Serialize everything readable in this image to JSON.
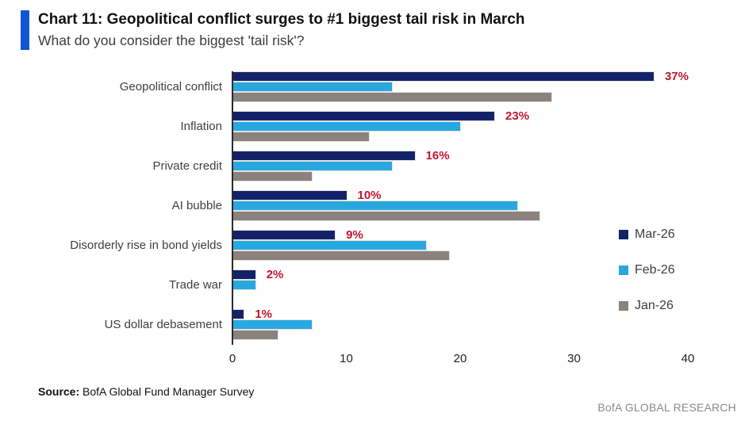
{
  "header": {
    "title": "Chart 11: Geopolitical conflict surges to #1 biggest tail risk in March",
    "subtitle": "What do you consider the biggest 'tail risk'?"
  },
  "colors": {
    "accent_bar": "#1155d4",
    "mar_navy": "#132268",
    "feb_blue": "#29a8e0",
    "jan_gray": "#8b817d",
    "value_label_red": "#c21431",
    "axis_line": "#2b2b2b"
  },
  "chart_data": {
    "type": "bar",
    "orientation": "horizontal",
    "title": "Chart 11: Geopolitical conflict surges to #1 biggest tail risk in March",
    "subtitle": "What do you consider the biggest 'tail risk'?",
    "categories": [
      "Geopolitical conflict",
      "Inflation",
      "Private credit",
      "AI bubble",
      "Disorderly rise in bond yields",
      "Trade war",
      "US dollar debasement"
    ],
    "series": [
      {
        "name": "Mar-26",
        "color": "#132268",
        "values": [
          37,
          23,
          16,
          10,
          9,
          2,
          1
        ],
        "value_labels": [
          "37%",
          "23%",
          "16%",
          "10%",
          "9%",
          "2%",
          "1%"
        ]
      },
      {
        "name": "Feb-26",
        "color": "#29a8e0",
        "values": [
          14,
          20,
          14,
          25,
          17,
          2,
          7
        ]
      },
      {
        "name": "Jan-26",
        "color": "#8b817d",
        "values": [
          28,
          12,
          7,
          27,
          19,
          0,
          4
        ]
      }
    ],
    "xlim": [
      0,
      40
    ],
    "xticks": [
      0,
      10,
      20,
      30,
      40
    ],
    "grid": false,
    "legend_position": "right",
    "value_labels_series": "Mar-26"
  },
  "footer": {
    "source_label": "Source:",
    "source_text": "BofA Global Fund Manager Survey",
    "branding": "BofA GLOBAL RESEARCH"
  }
}
